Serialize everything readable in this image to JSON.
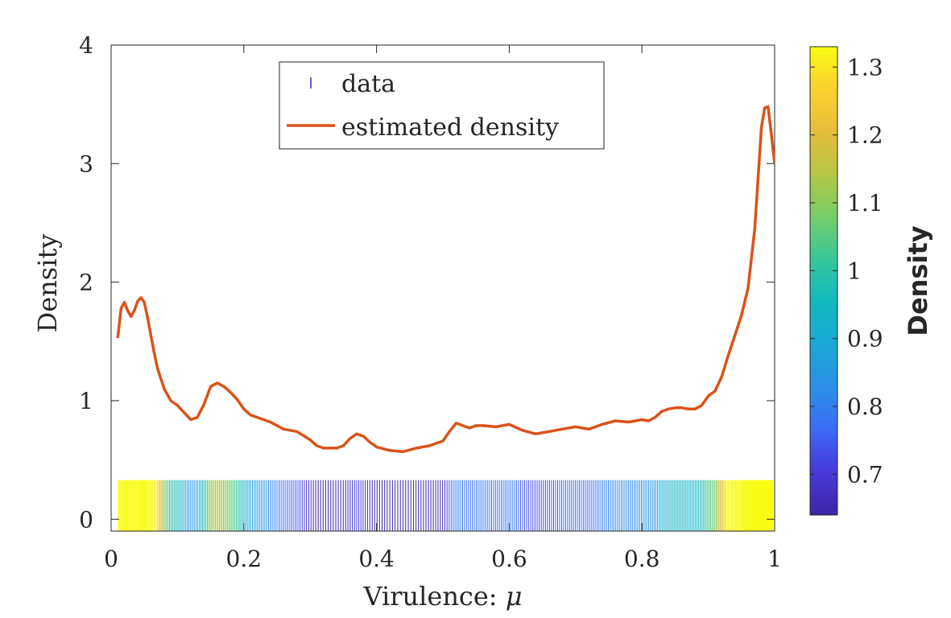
{
  "chart_data": {
    "type": "line",
    "xlabel_text": "Virulence: ",
    "xlabel_symbol": "μ",
    "ylabel": "Density",
    "xlim": [
      0,
      1
    ],
    "ylim": [
      -0.1,
      4
    ],
    "xticks": [
      0,
      0.2,
      0.4,
      0.6,
      0.8,
      1
    ],
    "xtick_labels": [
      "0",
      "0.2",
      "0.4",
      "0.6",
      "0.8",
      "1"
    ],
    "yticks": [
      0,
      1,
      2,
      3,
      4
    ],
    "ytick_labels": [
      "0",
      "1",
      "2",
      "3",
      "4"
    ],
    "grid": false,
    "legend_placement": "top-center",
    "legend": {
      "data_label": "data",
      "density_label": "estimated density"
    },
    "series": [
      {
        "name": "estimated density",
        "color": "#d95319",
        "x": [
          0.01,
          0.015,
          0.02,
          0.025,
          0.03,
          0.035,
          0.04,
          0.045,
          0.05,
          0.055,
          0.06,
          0.065,
          0.07,
          0.08,
          0.09,
          0.1,
          0.11,
          0.12,
          0.13,
          0.14,
          0.15,
          0.16,
          0.17,
          0.18,
          0.19,
          0.2,
          0.21,
          0.22,
          0.24,
          0.26,
          0.28,
          0.3,
          0.31,
          0.32,
          0.33,
          0.34,
          0.35,
          0.36,
          0.37,
          0.38,
          0.39,
          0.4,
          0.42,
          0.44,
          0.46,
          0.48,
          0.5,
          0.51,
          0.52,
          0.53,
          0.54,
          0.55,
          0.56,
          0.58,
          0.6,
          0.62,
          0.64,
          0.66,
          0.68,
          0.7,
          0.72,
          0.74,
          0.76,
          0.78,
          0.8,
          0.81,
          0.82,
          0.83,
          0.84,
          0.85,
          0.86,
          0.87,
          0.88,
          0.89,
          0.9,
          0.91,
          0.92,
          0.93,
          0.94,
          0.95,
          0.96,
          0.97,
          0.98,
          0.985,
          0.99,
          0.995,
          1.0
        ],
        "y": [
          1.53,
          1.78,
          1.83,
          1.76,
          1.71,
          1.76,
          1.84,
          1.87,
          1.83,
          1.7,
          1.55,
          1.4,
          1.27,
          1.1,
          1.0,
          0.96,
          0.9,
          0.84,
          0.86,
          0.97,
          1.12,
          1.15,
          1.12,
          1.07,
          1.01,
          0.93,
          0.88,
          0.86,
          0.82,
          0.76,
          0.74,
          0.67,
          0.62,
          0.6,
          0.6,
          0.6,
          0.62,
          0.68,
          0.72,
          0.7,
          0.65,
          0.61,
          0.58,
          0.57,
          0.6,
          0.62,
          0.66,
          0.74,
          0.81,
          0.79,
          0.77,
          0.79,
          0.79,
          0.78,
          0.8,
          0.75,
          0.72,
          0.74,
          0.76,
          0.78,
          0.76,
          0.8,
          0.83,
          0.82,
          0.84,
          0.83,
          0.86,
          0.91,
          0.93,
          0.94,
          0.94,
          0.93,
          0.93,
          0.96,
          1.04,
          1.08,
          1.2,
          1.38,
          1.55,
          1.72,
          1.95,
          2.45,
          3.3,
          3.47,
          3.48,
          3.25,
          3.0
        ]
      }
    ],
    "rug": {
      "name": "data",
      "x_start": 0.01,
      "x_end": 0.998,
      "count": 420,
      "height": 0.33
    },
    "colorbar": {
      "label": "Density",
      "range": [
        0.64,
        1.33
      ],
      "ticks": [
        0.7,
        0.8,
        0.9,
        1,
        1.1,
        1.2,
        1.3
      ],
      "tick_labels": [
        "0.7",
        "0.8",
        "0.9",
        "1",
        "1.1",
        "1.2",
        "1.3"
      ],
      "colormap": [
        "#3e26a8",
        "#4838d8",
        "#3c6af5",
        "#2c90e9",
        "#1ba8d6",
        "#11b8bf",
        "#36c79b",
        "#76cd6a",
        "#b5c744",
        "#e6bc3c",
        "#fbd12e",
        "#f9fb15"
      ]
    }
  }
}
